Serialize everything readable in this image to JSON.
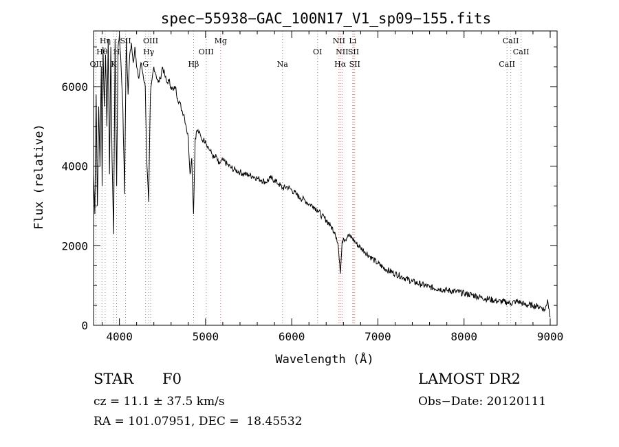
{
  "chart_data": {
    "type": "line",
    "title": "spec−55938−GAC_100N17_V1_sp09−155.fits",
    "xlabel": "Wavelength (Å)",
    "ylabel": "Flux (relative)",
    "xlim": [
      3700,
      9080
    ],
    "ylim": [
      0,
      7400
    ],
    "xticks": [
      4000,
      5000,
      6000,
      7000,
      8000,
      9000
    ],
    "yticks": [
      0,
      2000,
      4000,
      6000
    ],
    "xtick_labels": [
      "4000",
      "5000",
      "6000",
      "7000",
      "8000",
      "9000"
    ],
    "ytick_labels": [
      "0",
      "2000",
      "4000",
      "6000"
    ],
    "grid": false,
    "series": [
      {
        "x": [
          3700,
          3715,
          3730,
          3745,
          3760,
          3775,
          3790,
          3800,
          3810,
          3825,
          3840,
          3855,
          3870,
          3885,
          3900,
          3915,
          3933,
          3950,
          3968,
          3985,
          4000,
          4020,
          4040,
          4060,
          4080,
          4101,
          4120,
          4140,
          4160,
          4180,
          4200,
          4225,
          4250,
          4275,
          4300,
          4320,
          4340,
          4360,
          4380,
          4400,
          4425,
          4450,
          4475,
          4500,
          4525,
          4550,
          4575,
          4600,
          4625,
          4650,
          4675,
          4700,
          4725,
          4750,
          4775,
          4800,
          4820,
          4840,
          4861,
          4880,
          4900,
          4925,
          4950,
          4975,
          5000,
          5025,
          5050,
          5075,
          5100,
          5125,
          5150,
          5175,
          5200,
          5250,
          5300,
          5350,
          5400,
          5450,
          5500,
          5550,
          5600,
          5650,
          5700,
          5750,
          5800,
          5850,
          5893,
          5950,
          6000,
          6050,
          6100,
          6150,
          6200,
          6250,
          6300,
          6350,
          6400,
          6450,
          6500,
          6520,
          6540,
          6563,
          6585,
          6600,
          6620,
          6650,
          6700,
          6750,
          6800,
          6850,
          6900,
          6950,
          7000,
          7100,
          7200,
          7300,
          7400,
          7500,
          7600,
          7700,
          7800,
          7900,
          8000,
          8100,
          8200,
          8300,
          8400,
          8498,
          8542,
          8600,
          8662,
          8700,
          8800,
          8850,
          8900,
          8940,
          8970,
          9000
        ],
        "y": [
          3800,
          2800,
          5800,
          3000,
          5500,
          4000,
          6500,
          3500,
          7000,
          5500,
          6800,
          5000,
          7200,
          3800,
          7000,
          4200,
          2300,
          7200,
          3500,
          7000,
          7300,
          6500,
          5500,
          3300,
          7200,
          5800,
          6800,
          7100,
          6600,
          7000,
          6500,
          6200,
          6600,
          6300,
          6000,
          4000,
          3100,
          5800,
          6200,
          6500,
          6300,
          6100,
          6200,
          6500,
          6300,
          6100,
          6150,
          6000,
          5900,
          6000,
          5700,
          5600,
          5400,
          5300,
          5000,
          4700,
          3800,
          4200,
          2800,
          4700,
          4900,
          4850,
          4700,
          4650,
          4650,
          4500,
          4400,
          4300,
          4200,
          4250,
          4050,
          4100,
          4150,
          4050,
          3950,
          3900,
          3850,
          3800,
          3780,
          3750,
          3700,
          3650,
          3600,
          3700,
          3650,
          3550,
          3450,
          3480,
          3400,
          3300,
          3200,
          3150,
          3050,
          3000,
          2900,
          2750,
          2650,
          2500,
          2350,
          2200,
          2000,
          1300,
          2100,
          2200,
          2150,
          2250,
          2200,
          2050,
          1950,
          1850,
          1750,
          1650,
          1550,
          1400,
          1300,
          1200,
          1100,
          1030,
          960,
          920,
          880,
          850,
          800,
          760,
          700,
          650,
          600,
          580,
          550,
          600,
          570,
          520,
          500,
          480,
          450,
          380,
          650,
          200
        ]
      }
    ],
    "lines": [
      {
        "label": "OII",
        "x": 3727,
        "row": 3,
        "color": "#888888"
      },
      {
        "label": "Hθ",
        "x": 3798,
        "row": 2,
        "color": "#888888"
      },
      {
        "label": "Hη",
        "x": 3835,
        "row": 1,
        "color": "#888888"
      },
      {
        "label": "K",
        "x": 3933,
        "row": 3,
        "color": "#888888"
      },
      {
        "label": "H",
        "x": 3968,
        "row": 2,
        "color": "#888888"
      },
      {
        "label": "SII",
        "x": 4072,
        "row": 1,
        "color": "#888888"
      },
      {
        "label": "G",
        "x": 4304,
        "row": 3,
        "color": "#888888"
      },
      {
        "label": "Hγ",
        "x": 4340,
        "row": 2,
        "color": "#888888"
      },
      {
        "label": "OIII",
        "x": 4363,
        "row": 1,
        "color": "#888888"
      },
      {
        "label": "Hβ",
        "x": 4861,
        "row": 3,
        "color": "#888888"
      },
      {
        "label": "OIII",
        "x": 5007,
        "row": 2,
        "color": "#888888"
      },
      {
        "label": "Mg",
        "x": 5175,
        "row": 1,
        "color": "#e06060"
      },
      {
        "label": "Na",
        "x": 5893,
        "row": 3,
        "color": "#888888"
      },
      {
        "label": "OI",
        "x": 6300,
        "row": 2,
        "color": "#888888"
      },
      {
        "label": "NII",
        "x": 6548,
        "row": 1,
        "color": "#e06060"
      },
      {
        "label": "Hα",
        "x": 6563,
        "row": 3,
        "color": "#e06060"
      },
      {
        "label": "NII",
        "x": 6584,
        "row": 2,
        "color": "#e06060"
      },
      {
        "label": "Li",
        "x": 6708,
        "row": 1,
        "color": "#888888"
      },
      {
        "label": "SII",
        "x": 6717,
        "row": 2,
        "color": "#e06060"
      },
      {
        "label": "SII",
        "x": 6731,
        "row": 3,
        "color": "#e06060"
      },
      {
        "label": "CaII",
        "x": 8498,
        "row": 3,
        "color": "#888888"
      },
      {
        "label": "CaII",
        "x": 8542,
        "row": 1,
        "color": "#888888"
      },
      {
        "label": "CaII",
        "x": 8662,
        "row": 2,
        "color": "#888888"
      }
    ]
  },
  "info": {
    "object_type": "STAR",
    "subclass": "F0",
    "survey": "LAMOST DR2",
    "redshift": "cz = 11.1 ± 37.5 km/s",
    "obs_date": "Obs−Date: 20120111",
    "coords": "RA = 101.07951, DEC =  18.45532"
  }
}
